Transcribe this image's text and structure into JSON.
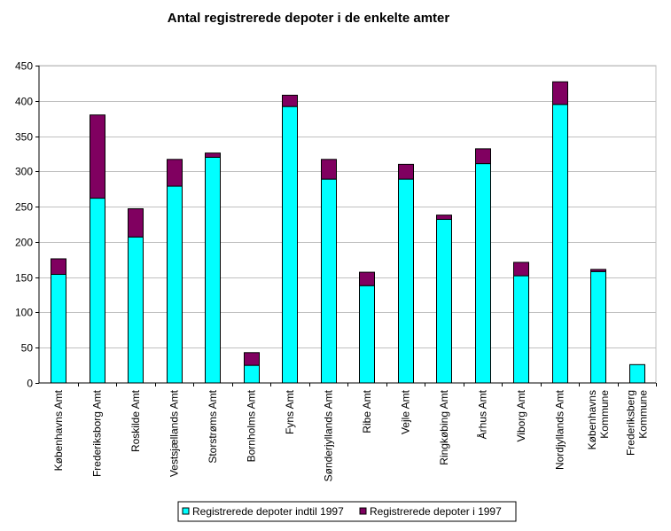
{
  "chart_data": {
    "type": "bar",
    "stacked": true,
    "title": "Antal registrerede depoter i de enkelte amter",
    "xlabel": "",
    "ylabel": "",
    "ylim": [
      0,
      450
    ],
    "yticks": [
      0,
      50,
      100,
      150,
      200,
      250,
      300,
      350,
      400,
      450
    ],
    "categories": [
      [
        "Københavns Amt"
      ],
      [
        "Frederiksborg Amt"
      ],
      [
        "Roskilde Amt"
      ],
      [
        "Vestsjællands Amt"
      ],
      [
        "Storstrøms Amt"
      ],
      [
        "Bornholms Amt"
      ],
      [
        "Fyns Amt"
      ],
      [
        "Sønderjyllands Amt"
      ],
      [
        "Ribe Amt"
      ],
      [
        "Vejle Amt"
      ],
      [
        "Ringkøbing Amt"
      ],
      [
        "Århus Amt"
      ],
      [
        "Viborg Amt"
      ],
      [
        "Nordjyllands Amt"
      ],
      [
        "Københavns",
        "Kommune"
      ],
      [
        "Frederiksberg",
        "Kommune"
      ]
    ],
    "series": [
      {
        "name": "Registrerede depoter indtil 1997",
        "color": "#00ffff",
        "values": [
          154,
          262,
          207,
          279,
          320,
          25,
          392,
          289,
          138,
          289,
          232,
          311,
          152,
          395,
          158,
          26
        ]
      },
      {
        "name": "Registrerede depoter i 1997",
        "color": "#800060",
        "values": [
          22,
          118,
          40,
          38,
          6,
          18,
          16,
          28,
          19,
          21,
          6,
          21,
          19,
          32,
          3,
          0
        ]
      }
    ],
    "legend": "bottom"
  }
}
